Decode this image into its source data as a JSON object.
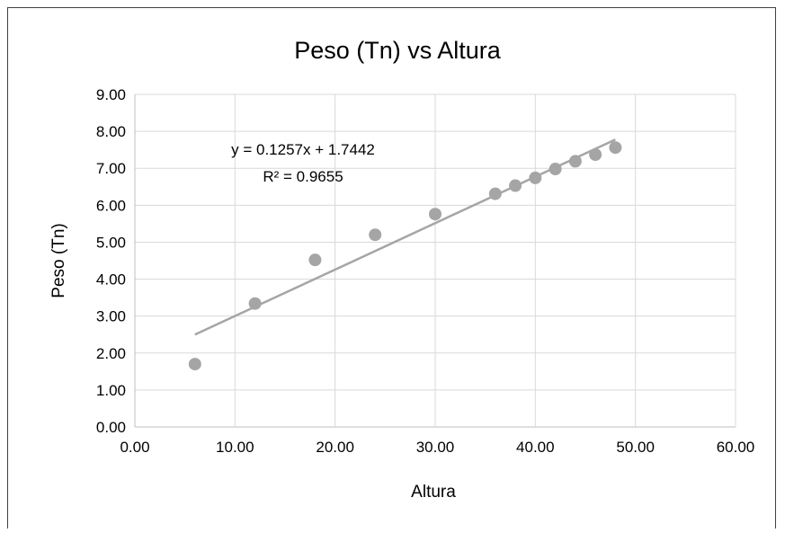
{
  "chart_data": {
    "type": "scatter",
    "title": "Peso (Tn) vs Altura",
    "xlabel": "Altura",
    "ylabel": "Peso (Tn)",
    "xlim": [
      0,
      60
    ],
    "ylim": [
      0,
      9
    ],
    "x_ticks": [
      "0.00",
      "10.00",
      "20.00",
      "30.00",
      "40.00",
      "50.00",
      "60.00"
    ],
    "y_ticks": [
      "0.00",
      "1.00",
      "2.00",
      "3.00",
      "4.00",
      "5.00",
      "6.00",
      "7.00",
      "8.00",
      "9.00"
    ],
    "grid": true,
    "series": [
      {
        "x": [
          6,
          12,
          18,
          24,
          30,
          36,
          38,
          40,
          42,
          44,
          46,
          48
        ],
        "y": [
          1.7,
          3.34,
          4.52,
          5.2,
          5.76,
          6.31,
          6.53,
          6.74,
          6.98,
          7.19,
          7.37,
          7.56
        ]
      }
    ],
    "trendline": {
      "type": "linear",
      "slope": 0.1257,
      "intercept": 1.7442,
      "x_range": [
        6,
        48
      ],
      "equation": "y = 0.1257x + 1.7442",
      "r_squared": "R² = 0.9655"
    },
    "colors": {
      "marker": "#a5a5a5",
      "trendline": "#a5a5a5",
      "grid": "#d9d9d9"
    }
  }
}
